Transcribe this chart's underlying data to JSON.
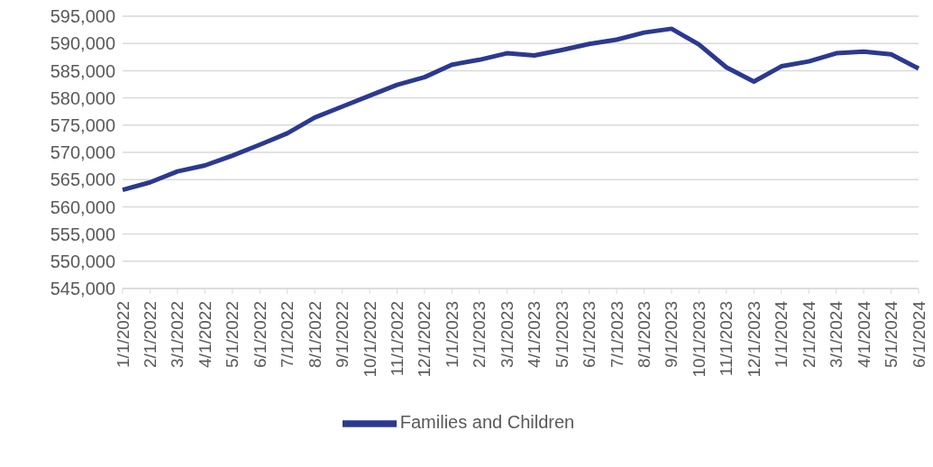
{
  "chart_data": {
    "type": "line",
    "categories": [
      "1/1/2022",
      "2/1/2022",
      "3/1/2022",
      "4/1/2022",
      "5/1/2022",
      "6/1/2022",
      "7/1/2022",
      "8/1/2022",
      "9/1/2022",
      "10/1/2022",
      "11/1/2022",
      "12/1/2022",
      "1/1/2023",
      "2/1/2023",
      "3/1/2023",
      "4/1/2023",
      "5/1/2023",
      "6/1/2023",
      "7/1/2023",
      "8/1/2023",
      "9/1/2023",
      "10/1/2023",
      "11/1/2023",
      "12/1/2023",
      "1/1/2024",
      "2/1/2024",
      "3/1/2024",
      "4/1/2024",
      "5/1/2024",
      "6/1/2024"
    ],
    "series": [
      {
        "name": "Families and Children",
        "color": "#2b3990",
        "values": [
          563100,
          564500,
          566500,
          567600,
          569400,
          571400,
          573500,
          576400,
          578400,
          580400,
          582400,
          583800,
          586100,
          587000,
          588200,
          587800,
          588800,
          589900,
          590700,
          592000,
          592700,
          589800,
          585600,
          583000,
          585800,
          586700,
          588200,
          588500,
          588000,
          585400
        ]
      }
    ],
    "ylim": [
      545000,
      595000
    ],
    "yticks": [
      {
        "value": 545000,
        "label": "545,000"
      },
      {
        "value": 550000,
        "label": "550,000"
      },
      {
        "value": 555000,
        "label": "555,000"
      },
      {
        "value": 560000,
        "label": "560,000"
      },
      {
        "value": 565000,
        "label": "565,000"
      },
      {
        "value": 570000,
        "label": "570,000"
      },
      {
        "value": 575000,
        "label": "575,000"
      },
      {
        "value": 580000,
        "label": "580,000"
      },
      {
        "value": 585000,
        "label": "585,000"
      },
      {
        "value": 590000,
        "label": "590,000"
      },
      {
        "value": 595000,
        "label": "595,000"
      }
    ],
    "grid": "y",
    "legend": "bottom",
    "marker": "none",
    "line_style": "solid"
  }
}
